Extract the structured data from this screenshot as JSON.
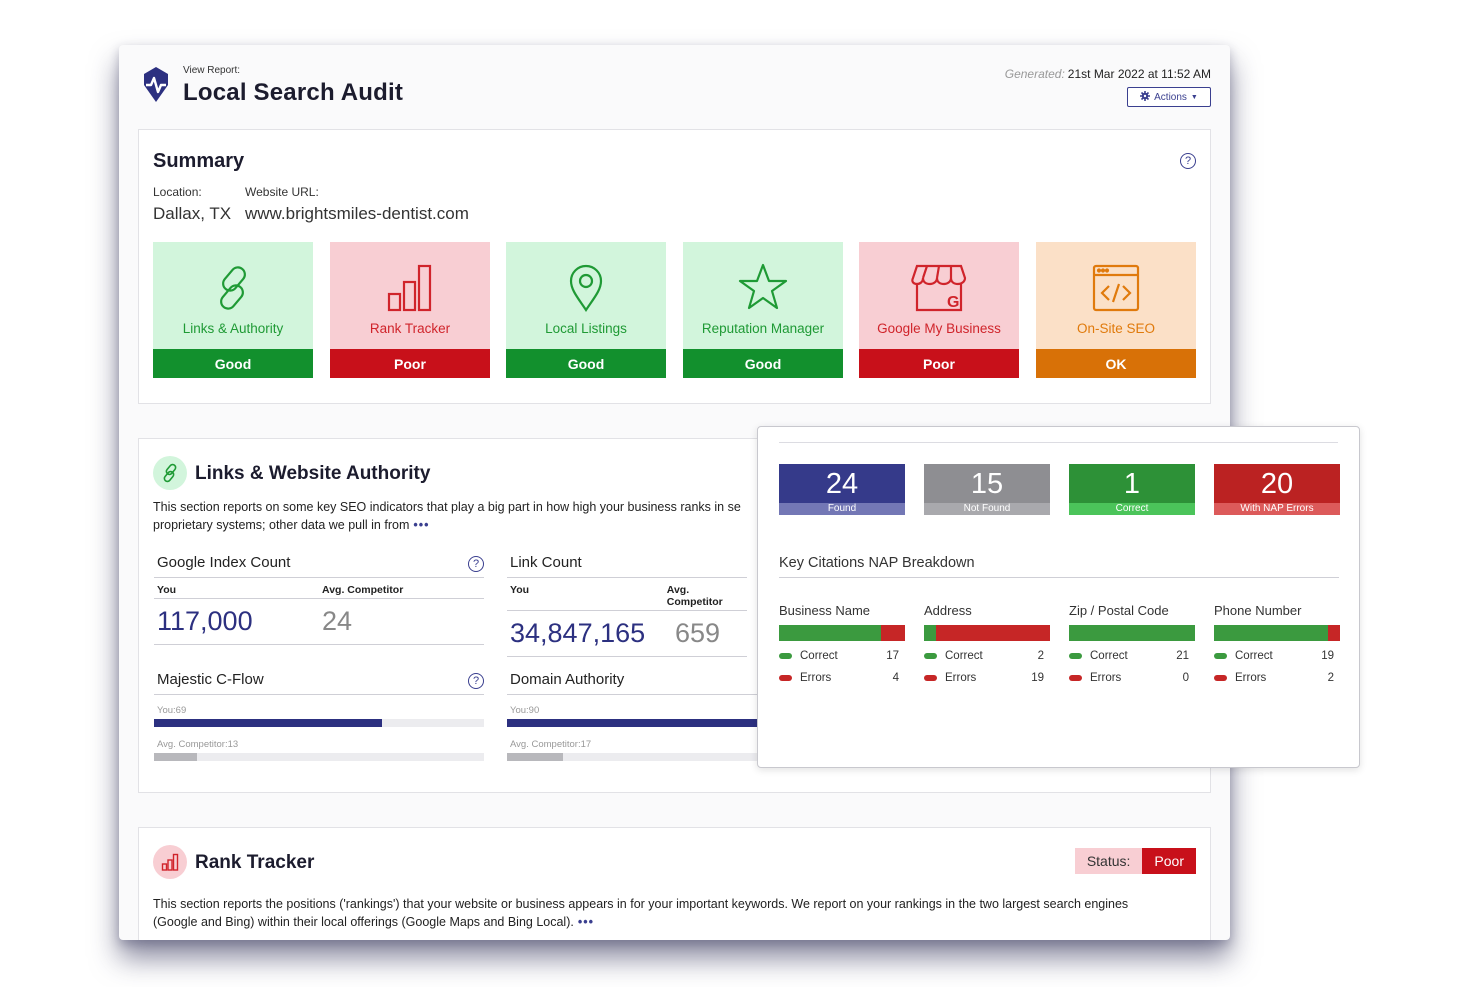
{
  "header": {
    "view_label": "View Report:",
    "title": "Local Search Audit",
    "generated_label": "Generated:",
    "generated_value": "21st Mar 2022 at 11:52 AM",
    "actions_label": "Actions"
  },
  "summary": {
    "title": "Summary",
    "location_label": "Location:",
    "location_value": "Dallax, TX",
    "url_label": "Website URL:",
    "url_value": "www.brightsmiles-dentist.com",
    "tiles": [
      {
        "label": "Links & Authority",
        "status": "Good",
        "icon": "link-icon"
      },
      {
        "label": "Rank Tracker",
        "status": "Poor",
        "icon": "bar-chart-icon"
      },
      {
        "label": "Local Listings",
        "status": "Good",
        "icon": "map-pin-icon"
      },
      {
        "label": "Reputation Manager",
        "status": "Good",
        "icon": "star-icon"
      },
      {
        "label": "Google My Business",
        "status": "Poor",
        "icon": "storefront-g-icon"
      },
      {
        "label": "On-Site SEO",
        "status": "OK",
        "icon": "code-window-icon"
      }
    ],
    "colors": {
      "good": "#12902d",
      "poor": "#c8101a",
      "ok": "#d87107"
    }
  },
  "links": {
    "title": "Links & Website Authority",
    "desc_line1": "This section reports on some key SEO indicators that play a big part in how high your business ranks in se",
    "desc_line2": "proprietary systems; other data we pull in from",
    "more": "•••",
    "google_index": {
      "title": "Google Index Count",
      "you_label": "You",
      "comp_label": "Avg. Competitor",
      "you": "117,000",
      "comp": "24"
    },
    "link_count": {
      "title": "Link Count",
      "you_label": "You",
      "comp_label": "Avg. Competitor",
      "you": "34,847,165",
      "comp": "659"
    },
    "majestic": {
      "title": "Majestic C-Flow",
      "you_label": "You:69",
      "comp_label": "Avg. Competitor:13",
      "you": 69,
      "comp": 13
    },
    "domain_authority": {
      "title": "Domain Authority",
      "you_label": "You:90",
      "comp_label": "Avg. Competitor:17",
      "you": 90,
      "comp": 17
    }
  },
  "rank": {
    "title": "Rank Tracker",
    "status_label": "Status:",
    "status_value": "Poor",
    "desc_line1": "This section reports the positions ('rankings') that your website or business appears in for your important keywords. We report on your rankings in the two largest search engines",
    "desc_line2": "(Google and Bing) within their local offerings (Google Maps and Bing Local).",
    "more": "•••"
  },
  "citations": {
    "stats": [
      {
        "value": "24",
        "caption": "Found"
      },
      {
        "value": "15",
        "caption": "Not Found"
      },
      {
        "value": "1",
        "caption": "Correct"
      },
      {
        "value": "20",
        "caption": "With NAP Errors"
      }
    ],
    "breakdown_title": "Key Citations NAP Breakdown",
    "correct_label": "Correct",
    "errors_label": "Errors",
    "columns": [
      {
        "title": "Business Name",
        "correct": 17,
        "errors": 4
      },
      {
        "title": "Address",
        "correct": 2,
        "errors": 19
      },
      {
        "title": "Zip / Postal Code",
        "correct": 21,
        "errors": 0
      },
      {
        "title": "Phone Number",
        "correct": 19,
        "errors": 2
      }
    ]
  }
}
